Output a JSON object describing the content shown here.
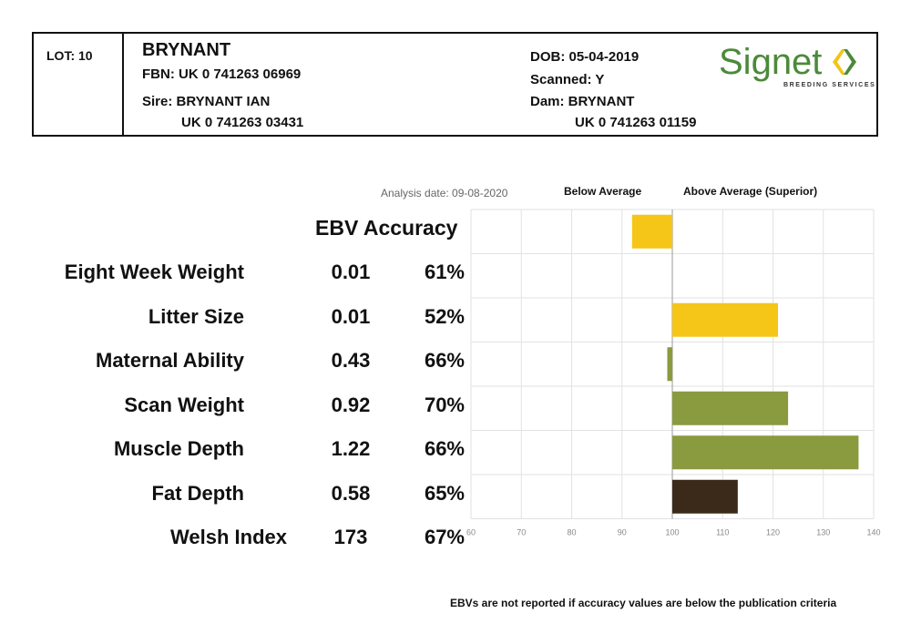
{
  "header": {
    "lot": "LOT: 10",
    "name": "BRYNANT",
    "fbn": "FBN: UK 0 741263 06969",
    "sire": "Sire: BRYNANT IAN",
    "sire_id": "UK 0 741263 03431",
    "dob": "DOB: 05-04-2019",
    "scanned": "Scanned: Y",
    "dam": "Dam: BRYNANT",
    "dam_id": "UK 0 741263 01159"
  },
  "logo": {
    "word": "Signet",
    "subtitle": "BREEDING SERVICES",
    "icon": "signet-chevrons-icon",
    "colors": {
      "green": "#4b8a3a",
      "yellow": "#f3c414"
    }
  },
  "analysis_date": "Analysis date: 09-08-2020",
  "legend": {
    "below": "Below Average",
    "above": "Above Average (Superior)"
  },
  "columns": {
    "ebv_accuracy": "EBV Accuracy"
  },
  "footnote": "EBVs are not reported if accuracy values are below the publication criteria",
  "colors": {
    "maternal": "#f5c518",
    "terminal": "#8a9a3e",
    "index": "#3b2a1a",
    "grid": "#e2e2e2",
    "baseline": "#999999"
  },
  "chart_data": {
    "type": "bar",
    "orientation": "horizontal",
    "baseline": 100,
    "xlim": [
      60,
      140
    ],
    "xticks": [
      60,
      70,
      80,
      90,
      100,
      110,
      120,
      130,
      140
    ],
    "grid": true,
    "rows": [
      {
        "trait": "Eight Week Weight",
        "ebv": "0.01",
        "accuracy": "61%",
        "value": 92,
        "group": "maternal"
      },
      {
        "trait": "Litter Size",
        "ebv": "0.01",
        "accuracy": "52%",
        "value": 100,
        "group": "maternal"
      },
      {
        "trait": "Maternal Ability",
        "ebv": "0.43",
        "accuracy": "66%",
        "value": 121,
        "group": "maternal"
      },
      {
        "trait": "Scan Weight",
        "ebv": "0.92",
        "accuracy": "70%",
        "value": 99,
        "group": "terminal"
      },
      {
        "trait": "Muscle Depth",
        "ebv": "1.22",
        "accuracy": "66%",
        "value": 123,
        "group": "terminal"
      },
      {
        "trait": "Fat Depth",
        "ebv": "0.58",
        "accuracy": "65%",
        "value": 137,
        "group": "terminal"
      },
      {
        "trait": "Welsh Index",
        "ebv": "173",
        "accuracy": "67%",
        "value": 113,
        "group": "index"
      }
    ]
  }
}
